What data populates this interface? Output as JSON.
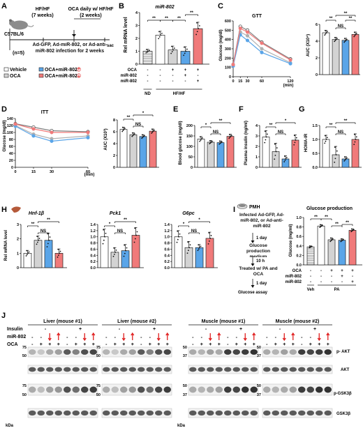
{
  "colors": {
    "vehicle": "#ffffff",
    "oca": "#d3d3d3",
    "oca_mir802_up": "#5aa5e8",
    "oca_mir802_down": "#f07a7a",
    "nd": "#e8e8e8",
    "line_nd": "#808080",
    "arrow_red": "#e02020"
  },
  "panel_labels": [
    "A",
    "B",
    "C",
    "D",
    "E",
    "F",
    "G",
    "H",
    "I",
    "J"
  ],
  "A": {
    "strain": "C57BL/6",
    "n": "(n=5)",
    "diet": "HF/HF",
    "diet_duration": "(7 weeks)",
    "treatment": "OCA daily w/ HF/HF",
    "treatment_duration": "(2 weeks)",
    "end": "sac",
    "infection": "Ad-GFP, Ad-miR-802, or Ad-anti-miR-802 infection for 2 weeks",
    "legend": [
      "Vehicle",
      "OCA",
      "OCA+miR-802",
      "OCA+miR-802"
    ]
  },
  "B": {
    "title": "miR-802",
    "ylabel": "Rel mRNA level",
    "yticks": [
      "0",
      "1",
      "2",
      "3",
      "4"
    ],
    "row_labels": [
      "OCA",
      "miR-802",
      "miR-802"
    ],
    "row_values": [
      [
        "-",
        "-",
        "+",
        "+",
        "+"
      ],
      [
        "-",
        "-",
        "-",
        "+",
        "-"
      ],
      [
        "-",
        "-",
        "-",
        "-",
        "+"
      ]
    ],
    "groups": [
      "ND",
      "HF/HF"
    ],
    "sig": [
      "**",
      "**",
      "**",
      "**"
    ],
    "chart_data": {
      "type": "bar",
      "categories": [
        "ND",
        "Vehicle",
        "OCA",
        "OCA+miR-802 up",
        "OCA+miR-802 down"
      ],
      "values": [
        1.0,
        2.25,
        1.1,
        1.0,
        2.75
      ],
      "errors": [
        0.15,
        0.3,
        0.3,
        0.35,
        0.5
      ],
      "ylim": [
        0,
        4
      ]
    }
  },
  "C": {
    "title": "GTT",
    "ylabel": "Glucose (mg/dl)",
    "xlabel": "(min)",
    "xticks": [
      "0",
      "15",
      "30",
      "60",
      "120"
    ],
    "yticks": [
      "0",
      "100",
      "200",
      "300",
      "400",
      "500",
      "600"
    ],
    "auc": {
      "ylabel": "AUC (X10⁴)",
      "yticks": [
        "0",
        "2",
        "4",
        "6"
      ],
      "sig": [
        "**",
        "**",
        "NS",
        "**"
      ]
    },
    "chart_data": {
      "type": "line",
      "x": [
        0,
        15,
        30,
        60,
        120
      ],
      "series": [
        {
          "values": [
            130,
            540,
            500,
            370,
            190
          ]
        },
        {
          "values": [
            120,
            480,
            440,
            300,
            150
          ]
        },
        {
          "values": [
            115,
            450,
            390,
            260,
            140
          ]
        },
        {
          "values": [
            130,
            520,
            480,
            360,
            180
          ]
        }
      ],
      "ylim": [
        0,
        600
      ],
      "auc": [
        5.0,
        4.2,
        4.1,
        4.8
      ]
    }
  },
  "D": {
    "title": "ITT",
    "ylabel": "Glucose (mg/dl)",
    "xlabel": "(min)",
    "xticks": [
      "0",
      "15",
      "30",
      "60"
    ],
    "yticks": [
      "0",
      "20",
      "40",
      "60",
      "80",
      "100",
      "120",
      "140"
    ],
    "auc": {
      "ylabel": "AUC (X10³)",
      "yticks": [
        "0",
        "2",
        "4",
        "6",
        "8"
      ],
      "sig": [
        "**",
        "*",
        "NS"
      ]
    },
    "chart_data": {
      "type": "line",
      "x": [
        0,
        15,
        30,
        60
      ],
      "series": [
        {
          "values": [
            125,
            115,
            105,
            102
          ]
        },
        {
          "values": [
            120,
            95,
            82,
            90
          ]
        },
        {
          "values": [
            118,
            90,
            75,
            85
          ]
        },
        {
          "values": [
            124,
            110,
            100,
            100
          ]
        }
      ],
      "ylim": [
        0,
        140
      ],
      "auc": [
        6.4,
        5.5,
        5.2,
        6.1
      ]
    }
  },
  "E": {
    "ylabel": "Blood glucose (mg/dl)",
    "yticks": [
      "0",
      "50",
      "100",
      "150",
      "200"
    ],
    "sig": [
      "*",
      "**",
      "NS"
    ],
    "chart_data": {
      "type": "bar",
      "values": [
        135,
        120,
        118,
        148
      ],
      "errors": [
        12,
        8,
        8,
        10
      ],
      "ylim": [
        0,
        200
      ]
    }
  },
  "F": {
    "ylabel": "Plasma insulin (ng/ml)",
    "yticks": [
      "0",
      "1",
      "2",
      "3",
      "4"
    ],
    "sig": [
      "**",
      "*",
      "NS"
    ],
    "chart_data": {
      "type": "bar",
      "values": [
        2.9,
        1.5,
        0.8,
        2.6
      ],
      "errors": [
        0.6,
        0.8,
        0.3,
        0.5
      ],
      "ylim": [
        0,
        4
      ]
    }
  },
  "G": {
    "ylabel": "HOMA-IR",
    "yticks": [
      "0.0",
      "0.5",
      "1.0",
      "1.5"
    ],
    "sig": [
      "**",
      "**",
      "NS"
    ],
    "chart_data": {
      "type": "bar",
      "values": [
        1.0,
        0.45,
        0.3,
        1.0
      ],
      "errors": [
        0.15,
        0.3,
        0.08,
        0.2
      ],
      "ylim": [
        0,
        1.5
      ]
    }
  },
  "H": {
    "ylabel": "Rel mRNA level",
    "plots": [
      {
        "title": "Hnf-1β",
        "yticks": [
          "0",
          "1",
          "2",
          "3"
        ],
        "sig": [
          "**",
          "**",
          "NS"
        ],
        "chart_data": {
          "type": "bar",
          "values": [
            1.0,
            1.9,
            1.9,
            1.0
          ],
          "errors": [
            0.2,
            0.3,
            0.5,
            0.3
          ],
          "ylim": [
            0,
            3
          ]
        }
      },
      {
        "title": "Pck1",
        "yticks": [
          "0.0",
          "0.2",
          "0.4",
          "0.6",
          "0.8",
          "1.0",
          "1.2",
          "1.4"
        ],
        "sig": [
          "*",
          "**",
          "NS"
        ],
        "chart_data": {
          "type": "bar",
          "values": [
            1.0,
            0.5,
            0.55,
            1.05
          ],
          "errors": [
            0.25,
            0.15,
            0.2,
            0.25
          ],
          "ylim": [
            0,
            1.4
          ]
        }
      },
      {
        "title": "G6pc",
        "yticks": [
          "0.0",
          "0.2",
          "0.4",
          "0.6",
          "0.8",
          "1.0",
          "1.2",
          "1.4"
        ],
        "sig": [
          "*",
          "*",
          "NS"
        ],
        "chart_data": {
          "type": "bar",
          "values": [
            1.0,
            0.65,
            0.65,
            0.95
          ],
          "errors": [
            0.2,
            0.2,
            0.1,
            0.2
          ],
          "ylim": [
            0,
            1.4
          ]
        }
      }
    ]
  },
  "I": {
    "header": "PMH",
    "flow": [
      "Infected Ad-GFP, Ad-miR-802, or Ad-anti-miR-802",
      "1 day",
      "Glucose production medium",
      "10 h",
      "Treated w/ PA and OCA",
      "1 day",
      "Glucose assay"
    ],
    "title": "Glucose production",
    "ylabel": "Glucose (mg/ml)",
    "yticks": [
      "0.0",
      "0.2",
      "0.4",
      "0.6",
      "0.8",
      "1.0"
    ],
    "row_labels": [
      "OCA",
      "miR-802",
      "miR-802"
    ],
    "row_values": [
      [
        "-",
        "-",
        "+",
        "+",
        "+"
      ],
      [
        "-",
        "-",
        "-",
        "+",
        "-"
      ],
      [
        "-",
        "-",
        "-",
        "-",
        "+"
      ]
    ],
    "groups": [
      "Veh",
      "PA"
    ],
    "sig": [
      "**",
      "**",
      "**",
      "**"
    ],
    "chart_data": {
      "type": "bar",
      "categories": [
        "Veh",
        "PA",
        "PA+OCA",
        "PA+OCA+miR-802 up",
        "PA+OCA+miR-802 down"
      ],
      "values": [
        0.38,
        0.82,
        0.53,
        0.52,
        0.73
      ],
      "errors": [
        0.02,
        0.03,
        0.04,
        0.03,
        0.03
      ],
      "ylim": [
        0,
        1.0
      ]
    }
  },
  "J": {
    "blots": [
      {
        "title": "Liver (mouse #1)"
      },
      {
        "title": "Liver (mouse #2)"
      },
      {
        "title": "Muscle (mouse #1)"
      },
      {
        "title": "Muscle (mouse #2)"
      }
    ],
    "row_insulin": "Insulin",
    "row_mir": "miR-802",
    "row_oca": "OCA",
    "insulin_minus": "-",
    "insulin_plus": "+",
    "oca_values": [
      "-",
      "+",
      "+",
      "+",
      "-",
      "+",
      "+",
      "+"
    ],
    "mir_values": [
      "-",
      "-",
      "down",
      "up",
      "-",
      "-",
      "down",
      "up"
    ],
    "marker_sets": [
      [
        "75",
        "50"
      ],
      [
        "75",
        "50"
      ],
      [
        "50",
        "37"
      ],
      [
        "50",
        "37"
      ]
    ],
    "band_labels": [
      "p- AKT",
      "AKT",
      "p-GSK3β",
      "GSK3β"
    ],
    "kda": "kDa",
    "band_intensity": {
      "liver_pakt": [
        0.25,
        0.15,
        0.3,
        0.35,
        0.7,
        0.5,
        0.75,
        0.8
      ],
      "muscle_pakt": [
        0.3,
        0.25,
        0.35,
        0.3,
        0.85,
        0.8,
        0.85,
        0.9
      ],
      "liver_pgsk": [
        0.3,
        0.2,
        0.35,
        0.4,
        0.75,
        0.6,
        0.8,
        0.85
      ],
      "muscle_pgsk": [
        0.3,
        0.25,
        0.3,
        0.35,
        0.85,
        0.8,
        0.9,
        0.9
      ],
      "total": [
        0.7,
        0.7,
        0.7,
        0.7,
        0.7,
        0.7,
        0.7,
        0.7
      ]
    }
  }
}
